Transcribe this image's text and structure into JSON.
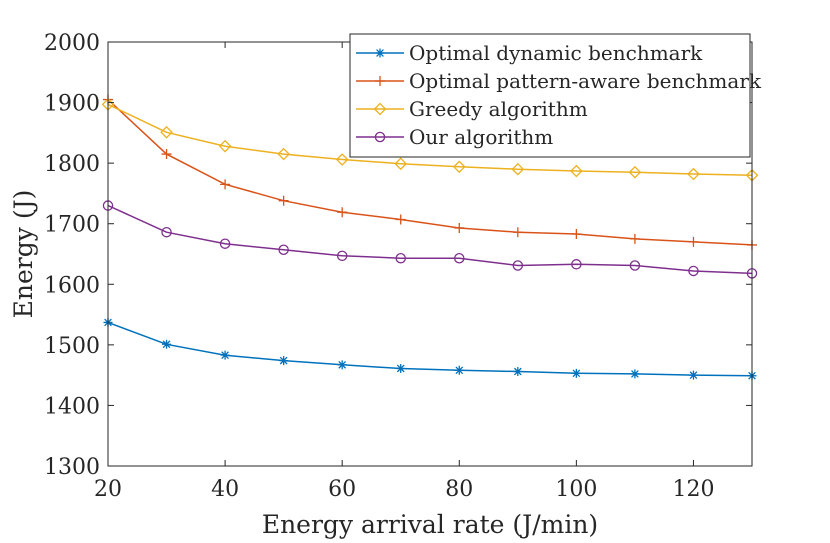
{
  "chart_data": {
    "type": "line",
    "title": "",
    "xlabel": "Energy arrival rate (J/min)",
    "ylabel": "Energy (J)",
    "xlim": [
      20,
      130
    ],
    "ylim": [
      1300,
      2000
    ],
    "xticks": [
      20,
      40,
      60,
      80,
      100,
      120
    ],
    "yticks": [
      1300,
      1400,
      1500,
      1600,
      1700,
      1800,
      1900,
      2000
    ],
    "grid": false,
    "legend_position": "top-right",
    "x": [
      20,
      30,
      40,
      50,
      60,
      70,
      80,
      90,
      100,
      110,
      120,
      130
    ],
    "series": [
      {
        "name": "Optimal dynamic benchmark",
        "color": "#0072BD",
        "marker": "asterisk",
        "values": [
          1537,
          1501,
          1483,
          1474,
          1467,
          1461,
          1458,
          1456,
          1453,
          1452,
          1450,
          1449
        ]
      },
      {
        "name": "Optimal pattern-aware benchmark",
        "color": "#D95319",
        "marker": "plus",
        "values": [
          1905,
          1815,
          1765,
          1738,
          1719,
          1707,
          1693,
          1686,
          1683,
          1675,
          1670,
          1665
        ]
      },
      {
        "name": "Greedy algorithm",
        "color": "#EDB120",
        "marker": "diamond",
        "values": [
          1897,
          1851,
          1828,
          1815,
          1806,
          1799,
          1794,
          1790,
          1787,
          1785,
          1782,
          1780
        ]
      },
      {
        "name": "Our algorithm",
        "color": "#7E2F8E",
        "marker": "circle",
        "values": [
          1730,
          1686,
          1667,
          1657,
          1647,
          1643,
          1643,
          1631,
          1633,
          1631,
          1622,
          1618
        ]
      }
    ]
  }
}
